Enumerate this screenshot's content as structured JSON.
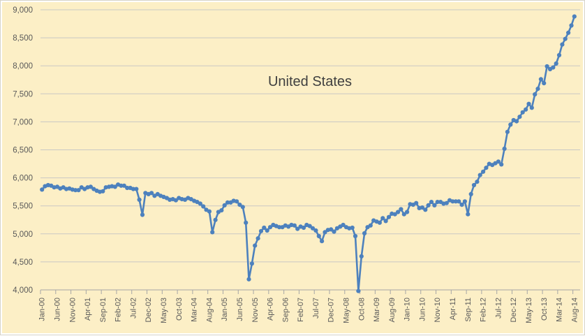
{
  "colors": {
    "background": "#FCEFC6",
    "line": "#4D81BD",
    "gridline": "#C9C8C4",
    "axis": "#A6A6A6",
    "tick_text": "#595959",
    "title_text": "#3F3F3F"
  },
  "chart_data": {
    "type": "line",
    "title": "United States",
    "ylim": [
      4000,
      9000
    ],
    "ytick_step": 500,
    "y_tick_labels": [
      "9,000",
      "8,500",
      "8,000",
      "7,500",
      "7,000",
      "6,500",
      "6,000",
      "5,500",
      "5,000",
      "4,500",
      "4,000"
    ],
    "x_tick_interval": 5,
    "x_tick_labels": [
      "Jan-00",
      "Jun-00",
      "Nov-00",
      "Apr-01",
      "Sep-01",
      "Feb-02",
      "Jul-02",
      "Dec-02",
      "May-03",
      "Oct-03",
      "Mar-04",
      "Aug-04",
      "Jan-05",
      "Jun-05",
      "Nov-05",
      "Apr-06",
      "Sep-06",
      "Feb-07",
      "Jul-07",
      "Dec-07",
      "May-08",
      "Oct-08",
      "Mar-09",
      "Aug-09",
      "Jan-10",
      "Jun-10",
      "Nov-10",
      "Apr-11",
      "Sep-11",
      "Feb-12",
      "Jul-12",
      "Dec-12",
      "May-13",
      "Oct-13",
      "Mar-14",
      "Aug-14"
    ],
    "grid": true,
    "legend": false,
    "marker": "circle",
    "values": [
      5790,
      5850,
      5870,
      5860,
      5830,
      5840,
      5810,
      5830,
      5800,
      5810,
      5790,
      5780,
      5780,
      5830,
      5800,
      5830,
      5840,
      5800,
      5770,
      5750,
      5760,
      5830,
      5840,
      5850,
      5840,
      5880,
      5860,
      5860,
      5820,
      5820,
      5800,
      5800,
      5610,
      5340,
      5730,
      5710,
      5730,
      5680,
      5710,
      5680,
      5660,
      5640,
      5610,
      5620,
      5600,
      5640,
      5620,
      5610,
      5640,
      5620,
      5590,
      5570,
      5540,
      5490,
      5430,
      5400,
      5030,
      5250,
      5390,
      5420,
      5510,
      5560,
      5560,
      5590,
      5580,
      5520,
      5480,
      5200,
      4190,
      4470,
      4790,
      4920,
      5050,
      5110,
      5060,
      5120,
      5160,
      5140,
      5120,
      5120,
      5150,
      5130,
      5160,
      5150,
      5090,
      5130,
      5110,
      5160,
      5140,
      5100,
      5060,
      4960,
      4870,
      5030,
      5070,
      5080,
      5040,
      5100,
      5130,
      5160,
      5120,
      5100,
      5110,
      4960,
      3980,
      4600,
      5010,
      5120,
      5150,
      5240,
      5220,
      5200,
      5280,
      5230,
      5300,
      5360,
      5350,
      5390,
      5440,
      5350,
      5390,
      5530,
      5520,
      5550,
      5460,
      5470,
      5430,
      5510,
      5570,
      5510,
      5570,
      5570,
      5540,
      5550,
      5600,
      5580,
      5580,
      5580,
      5520,
      5580,
      5350,
      5710,
      5870,
      5930,
      6050,
      6110,
      6180,
      6250,
      6230,
      6260,
      6290,
      6240,
      6520,
      6820,
      6950,
      7030,
      7010,
      7090,
      7170,
      7220,
      7320,
      7250,
      7490,
      7590,
      7760,
      7690,
      7990,
      7940,
      7970,
      8040,
      8190,
      8380,
      8480,
      8590,
      8720,
      8880
    ]
  }
}
